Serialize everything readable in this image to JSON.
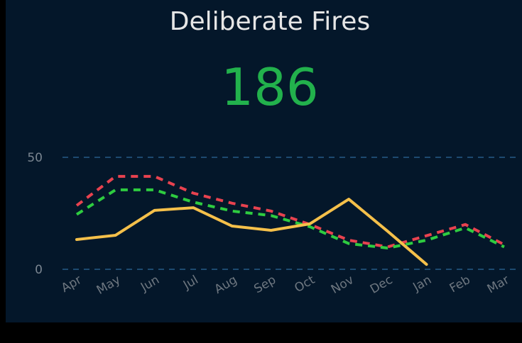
{
  "kpi": {
    "title": "Deliberate Fires",
    "value": 186
  },
  "chart_data": {
    "type": "line",
    "categories": [
      "Apr",
      "May",
      "Jun",
      "Jul",
      "Aug",
      "Sep",
      "Oct",
      "Nov",
      "Dec",
      "Jan",
      "Feb",
      "Mar"
    ],
    "series": [
      {
        "color": "#e8424f",
        "dashed": true,
        "values": [
          28.5,
          41.5,
          41.5,
          34,
          29.5,
          26,
          20,
          13,
          10,
          15,
          20,
          11
        ]
      },
      {
        "color": "#2ecc40",
        "dashed": true,
        "values": [
          24.5,
          35.5,
          35.5,
          30,
          26,
          24,
          19,
          11.5,
          9.5,
          13,
          18.5,
          10
        ]
      },
      {
        "color": "#f5c04a",
        "dashed": false,
        "values": [
          13.3,
          15.2,
          26.3,
          27.5,
          19.3,
          17.4,
          20.3,
          31.3,
          17,
          2.2,
          null,
          null
        ]
      }
    ],
    "ylim": [
      0,
      50
    ],
    "yticks": [
      0,
      50
    ],
    "grid": true
  }
}
